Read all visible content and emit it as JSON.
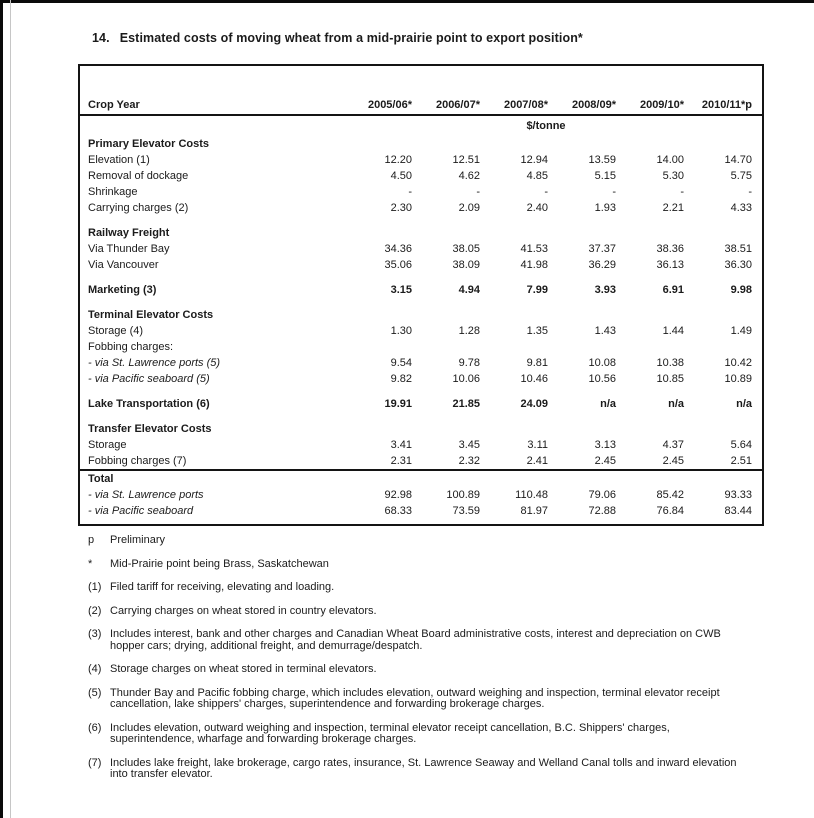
{
  "title": {
    "number": "14.",
    "text": "Estimated costs of moving wheat from a mid-prairie point to export position*"
  },
  "table": {
    "row_header": "Crop Year",
    "columns": [
      "2005/06*",
      "2006/07*",
      "2007/08*",
      "2008/09*",
      "2009/10*",
      "2010/11*p"
    ],
    "unit": "$/tonne",
    "rows": [
      {
        "label": "Primary Elevator Costs",
        "bold": true,
        "values": [
          "",
          "",
          "",
          "",
          "",
          ""
        ]
      },
      {
        "label": "Elevation (1)",
        "values": [
          "12.20",
          "12.51",
          "12.94",
          "13.59",
          "14.00",
          "14.70"
        ]
      },
      {
        "label": "Removal of dockage",
        "values": [
          "4.50",
          "4.62",
          "4.85",
          "5.15",
          "5.30",
          "5.75"
        ]
      },
      {
        "label": "Shrinkage",
        "values": [
          "-",
          "-",
          "-",
          "-",
          "-",
          "-"
        ]
      },
      {
        "label": "Carrying charges (2)",
        "values": [
          "2.30",
          "2.09",
          "2.40",
          "1.93",
          "2.21",
          "4.33"
        ]
      },
      {
        "label": "Railway Freight",
        "bold": true,
        "gap": true,
        "values": [
          "",
          "",
          "",
          "",
          "",
          ""
        ]
      },
      {
        "label": "Via Thunder Bay",
        "values": [
          "34.36",
          "38.05",
          "41.53",
          "37.37",
          "38.36",
          "38.51"
        ]
      },
      {
        "label": "Via Vancouver",
        "values": [
          "35.06",
          "38.09",
          "41.98",
          "36.29",
          "36.13",
          "36.30"
        ]
      },
      {
        "label": "Marketing (3)",
        "bold": true,
        "gap": true,
        "values": [
          "3.15",
          "4.94",
          "7.99",
          "3.93",
          "6.91",
          "9.98"
        ]
      },
      {
        "label": "Terminal Elevator Costs",
        "bold": true,
        "gap": true,
        "values": [
          "",
          "",
          "",
          "",
          "",
          ""
        ]
      },
      {
        "label": "Storage (4)",
        "values": [
          "1.30",
          "1.28",
          "1.35",
          "1.43",
          "1.44",
          "1.49"
        ]
      },
      {
        "label": "Fobbing charges:",
        "values": [
          "",
          "",
          "",
          "",
          "",
          ""
        ]
      },
      {
        "label": "- via St. Lawrence ports (5)",
        "italic": true,
        "values": [
          "9.54",
          "9.78",
          "9.81",
          "10.08",
          "10.38",
          "10.42"
        ]
      },
      {
        "label": "- via Pacific seaboard (5)",
        "italic": true,
        "values": [
          "9.82",
          "10.06",
          "10.46",
          "10.56",
          "10.85",
          "10.89"
        ]
      },
      {
        "label": "Lake Transportation (6)",
        "bold": true,
        "gap": true,
        "values": [
          "19.91",
          "21.85",
          "24.09",
          "n/a",
          "n/a",
          "n/a"
        ]
      },
      {
        "label": "Transfer Elevator Costs",
        "bold": true,
        "gap": true,
        "values": [
          "",
          "",
          "",
          "",
          "",
          ""
        ]
      },
      {
        "label": "Storage",
        "values": [
          "3.41",
          "3.45",
          "3.11",
          "3.13",
          "4.37",
          "5.64"
        ]
      },
      {
        "label": "Fobbing charges (7)",
        "values": [
          "2.31",
          "2.32",
          "2.41",
          "2.45",
          "2.45",
          "2.51"
        ]
      },
      {
        "label": "Total",
        "bold": true,
        "rule": true,
        "values": [
          "",
          "",
          "",
          "",
          "",
          ""
        ]
      },
      {
        "label": "- via St. Lawrence ports",
        "italic": true,
        "values": [
          "92.98",
          "100.89",
          "110.48",
          "79.06",
          "85.42",
          "93.33"
        ]
      },
      {
        "label": "- via Pacific seaboard",
        "italic": true,
        "values": [
          "68.33",
          "73.59",
          "81.97",
          "72.88",
          "76.84",
          "83.44"
        ]
      }
    ]
  },
  "footnotes": [
    {
      "marker": "p",
      "text": "Preliminary"
    },
    {
      "marker": "*",
      "text": "Mid-Prairie point being Brass, Saskatchewan"
    },
    {
      "marker": "(1)",
      "text": "Filed tariff for receiving, elevating and loading."
    },
    {
      "marker": "(2)",
      "text": "Carrying charges on wheat stored in country elevators."
    },
    {
      "marker": "(3)",
      "text": "Includes interest, bank and other charges and Canadian Wheat Board administrative costs, interest and depreciation on CWB hopper cars; drying, additional freight, and demurrage/despatch."
    },
    {
      "marker": "(4)",
      "text": "Storage charges on wheat stored in terminal elevators."
    },
    {
      "marker": "(5)",
      "text": "Thunder Bay and Pacific fobbing charge, which includes elevation, outward weighing and inspection, terminal elevator receipt cancellation, lake shippers' charges, superintendence and forwarding brokerage charges."
    },
    {
      "marker": "(6)",
      "text": "Includes elevation, outward weighing and inspection, terminal elevator receipt cancellation, B.C. Shippers' charges, superintendence, wharfage and forwarding brokerage charges."
    },
    {
      "marker": "(7)",
      "text": "Includes lake freight, lake brokerage, cargo rates, insurance, St. Lawrence Seaway and Welland Canal tolls and inward elevation into transfer elevator."
    }
  ],
  "colors": {
    "ink": "#1b1b1b",
    "border": "#141414",
    "background": "#ffffff"
  }
}
